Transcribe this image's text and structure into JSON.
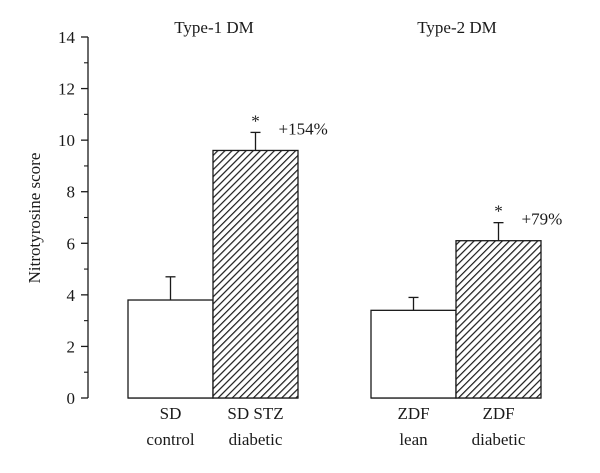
{
  "chart_data": {
    "type": "bar",
    "ylabel": "Nitrotyrosine score",
    "ylim": [
      0,
      14
    ],
    "yticks": [
      0,
      2,
      4,
      6,
      8,
      10,
      12,
      14
    ],
    "grid": false,
    "groups": [
      {
        "label": "Type-1 DM",
        "bars": [
          {
            "category": [
              "SD",
              "control"
            ],
            "value": 3.8,
            "error": 0.9,
            "pattern": "white",
            "annotation_mark": "",
            "annotation_pct": ""
          },
          {
            "category": [
              "SD STZ",
              "diabetic"
            ],
            "value": 9.6,
            "error": 0.7,
            "pattern": "hatched",
            "annotation_mark": "*",
            "annotation_pct": "+154%"
          }
        ]
      },
      {
        "label": "Type-2 DM",
        "bars": [
          {
            "category": [
              "ZDF",
              "lean"
            ],
            "value": 3.4,
            "error": 0.5,
            "pattern": "white",
            "annotation_mark": "",
            "annotation_pct": ""
          },
          {
            "category": [
              "ZDF",
              "diabetic"
            ],
            "value": 6.1,
            "error": 0.7,
            "pattern": "hatched",
            "annotation_mark": "*",
            "annotation_pct": "+79%"
          }
        ]
      }
    ]
  }
}
